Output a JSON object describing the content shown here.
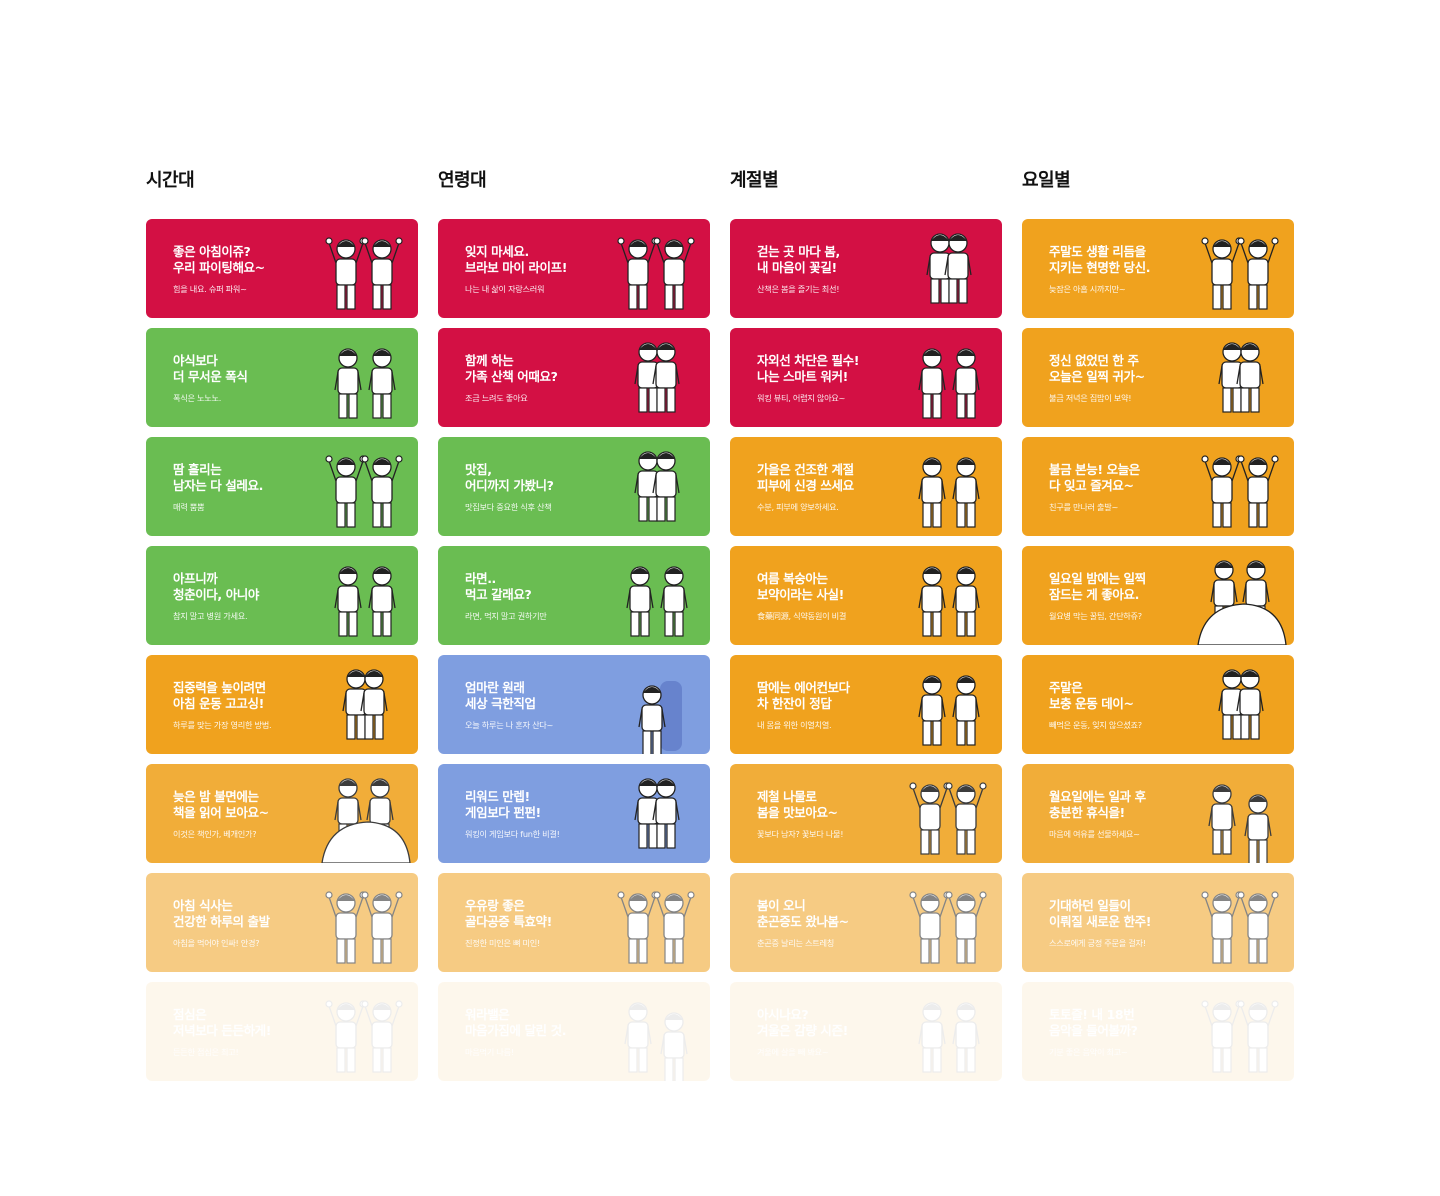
{
  "colors": {
    "red": "#d31044",
    "green": "#6abd52",
    "orange": "#f0a21e",
    "blue": "#7f9ee0"
  },
  "columns": [
    {
      "title": "시간대",
      "cards": [
        {
          "color": "red",
          "title": "좋은 아침이쥬?\n우리 파이팅해요~",
          "sub": "힘을 내요. 슈퍼 파워~",
          "icon": "two-men-cheering-icon"
        },
        {
          "color": "green",
          "title": "야식보다\n더 무서운 폭식",
          "sub": "폭식은 노노노.",
          "icon": "man-whispering-icon"
        },
        {
          "color": "green",
          "title": "땀 흘리는\n남자는 다 설레요.",
          "sub": "매력 뿜뿜",
          "icon": "couple-hearts-icon"
        },
        {
          "color": "green",
          "title": "아프니까\n청춘이다, 아니야",
          "sub": "참지 말고 병원 가세요.",
          "icon": "sick-couple-icon"
        },
        {
          "color": "orange",
          "title": "집중력을 높이려면\n아침 운동 고고싱!",
          "sub": "하루를 맞는 가장 영리한 방법.",
          "icon": "walking-couple-icon"
        },
        {
          "color": "orange",
          "title": "늦은 밤 불면에는\n책을 읽어 보아요~",
          "sub": "이것은 책인가, 베개인가?",
          "icon": "couple-in-bed-icon"
        },
        {
          "color": "orange",
          "title": "아침 식사는\n건강한 하루의 출발",
          "sub": "아침을 먹어야 인싸! 안경?",
          "icon": "two-men-cheering-icon"
        },
        {
          "color": "orange",
          "title": "점심은\n저녁보다 든든하게!",
          "sub": "든든한 점심은 최고!",
          "icon": "two-men-cheering-icon"
        }
      ]
    },
    {
      "title": "연령대",
      "cards": [
        {
          "color": "red",
          "title": "잊지 마세요.\n브라보 마이 라이프!",
          "sub": "나는 내 삶이 자랑스러워",
          "icon": "two-men-cheering-icon"
        },
        {
          "color": "red",
          "title": "함께 하는\n가족 산책 어때요?",
          "sub": "조금 느려도 좋아요",
          "icon": "walking-couple-icon"
        },
        {
          "color": "green",
          "title": "맛집,\n어디까지 가봤니?",
          "sub": "맛집보다 중요한 식후 산책",
          "icon": "walking-couple-icon"
        },
        {
          "color": "green",
          "title": "라면..\n먹고 갈래요?",
          "sub": "라면, 먹지 말고 권하기만",
          "icon": "two-men-standing-icon"
        },
        {
          "color": "blue",
          "title": "엄마란 원래\n세상 극한직업",
          "sub": "오늘 하루는 나 혼자 산다~",
          "icon": "sitting-woman-icon"
        },
        {
          "color": "blue",
          "title": "리워드 만렙!\n게임보다 펀펀!",
          "sub": "워킹이 게임보다 fun한 비결!",
          "icon": "walking-music-icon"
        },
        {
          "color": "orange",
          "title": "우유랑 좋은\n골다공증 특효약!",
          "sub": "진정한 미인은 뼈 미인!",
          "icon": "thumbs-up-couple-icon"
        },
        {
          "color": "orange",
          "title": "워라밸은\n마음가짐에 달린 것.",
          "sub": "마음먹기 나름!",
          "icon": "meditating-icon"
        }
      ]
    },
    {
      "title": "계절별",
      "cards": [
        {
          "color": "red",
          "title": "걷는 곳 마다 봄,\n내 마음이 꽃길!",
          "sub": "산책은 봄을 즐기는 최선!",
          "icon": "walking-couple-icon"
        },
        {
          "color": "red",
          "title": "자외선 차단은 필수!\n나는 스마트 워커!",
          "sub": "워킹 뷰티, 어렵지 않아요~",
          "icon": "thinking-couple-icon"
        },
        {
          "color": "orange",
          "title": "가을은 건조한 계절\n피부에 신경 쓰세요",
          "sub": "수분, 피부에 양보하세요.",
          "icon": "couple-drink-icon"
        },
        {
          "color": "orange",
          "title": "여름 복숭아는\n보약이라는 사실!",
          "sub": "食藥同源, 식약동원이 비결",
          "icon": "thinking-couple-icon"
        },
        {
          "color": "orange",
          "title": "땀에는 에어컨보다\n차 한잔이 정답",
          "sub": "내 몸을 위한 이열치열.",
          "icon": "couple-drink-icon"
        },
        {
          "color": "orange",
          "title": "제철 나물로\n봄을 맛보아요~",
          "sub": "꽃보다 남자? 꽃보다 나물!",
          "icon": "thumbs-up-couple-icon"
        },
        {
          "color": "orange",
          "title": "봄이 오니\n춘곤증도 왔나봄~",
          "sub": "춘곤증 날리는 스트레칭",
          "icon": "two-men-cheering-icon"
        },
        {
          "color": "orange",
          "title": "아시나요?\n겨울은 감량 시즌!",
          "sub": "겨울에 살을 빼 봐요~",
          "icon": "thinking-couple-icon"
        }
      ]
    },
    {
      "title": "요일별",
      "cards": [
        {
          "color": "orange",
          "title": "주말도 생활 리듬을\n지키는 현명한 당신.",
          "sub": "늦잠은 아홉 시까지만~",
          "icon": "two-men-cheering-icon"
        },
        {
          "color": "orange",
          "title": "정신 없었던 한 주\n오늘은 일찍 귀가~",
          "sub": "불금 저녁은 집밥이 보약!",
          "icon": "walking-couple-icon"
        },
        {
          "color": "orange",
          "title": "불금 본능! 오늘은\n다 잊고 즐겨요~",
          "sub": "친구를 만나러 출발~",
          "icon": "thumbs-up-couple-icon"
        },
        {
          "color": "orange",
          "title": "일요일 밤에는 일찍\n잠드는 게 좋아요.",
          "sub": "월요병 막는 꿀팁, 간단하쥬?",
          "icon": "couple-in-bed-icon"
        },
        {
          "color": "orange",
          "title": "주말은\n보충 운동 데이~",
          "sub": "빼먹은 운동, 잊지 않으셨죠?",
          "icon": "walking-couple-icon"
        },
        {
          "color": "orange",
          "title": "월요일에는 일과 후\n충분한 휴식을!",
          "sub": "마음에 여유를 선물하세요~",
          "icon": "meditating-icon"
        },
        {
          "color": "orange",
          "title": "기대하던 일들이\n이뤄질 새로운 한주!",
          "sub": "스스로에게 긍정 주문을 걸자!",
          "icon": "two-men-cheering-icon"
        },
        {
          "color": "orange",
          "title": "토토즐! 내 18번\n음악을 들어볼까?",
          "sub": "기분 좋은 음악이 최고~",
          "icon": "two-men-cheering-icon"
        }
      ]
    }
  ]
}
